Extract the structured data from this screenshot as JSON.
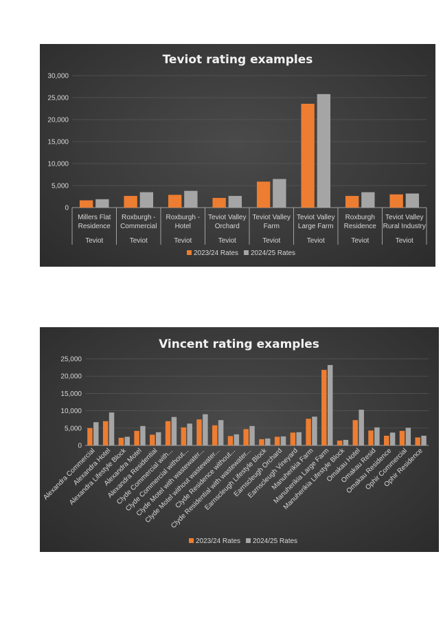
{
  "colors": {
    "series1": "#ed7d31",
    "series2": "#a5a5a5",
    "panel_bg": "#3a3a3a",
    "text": "#d9d9d9",
    "grid": "#595959"
  },
  "chart_data": [
    {
      "type": "bar",
      "title": "Teviot rating examples",
      "categories": [
        [
          "Millers Flat",
          "Residence"
        ],
        [
          "Roxburgh  -",
          "Commercial"
        ],
        [
          "Roxburgh  -",
          "Hotel"
        ],
        [
          "Teviot Valley",
          "Orchard"
        ],
        [
          "Teviot Valley",
          "Farm"
        ],
        [
          "Teviot Valley",
          "Large Farm"
        ],
        [
          "Roxburgh",
          "Residence"
        ],
        [
          "Teviot Valley",
          "Rural Industry"
        ]
      ],
      "group_labels": [
        "Teviot",
        "Teviot",
        "Teviot",
        "Teviot",
        "Teviot",
        "Teviot",
        "Teviot",
        "Teviot"
      ],
      "series": [
        {
          "name": "2023/24 Rates",
          "values": [
            1650,
            2650,
            2900,
            2200,
            5900,
            23600,
            2650,
            3000
          ]
        },
        {
          "name": "2024/25 Rates",
          "values": [
            1900,
            3500,
            3800,
            2650,
            6500,
            25800,
            3500,
            3200
          ]
        }
      ],
      "ylim": [
        0,
        30000
      ],
      "yticks": [
        "0",
        "5,000",
        "10,000",
        "15,000",
        "20,000",
        "25,000",
        "30,000"
      ],
      "ytick_values": [
        0,
        5000,
        10000,
        15000,
        20000,
        25000,
        30000
      ],
      "grid": true,
      "legend": "bottom"
    },
    {
      "type": "bar",
      "title": "Vincent rating examples",
      "categories": [
        "Alexandra Commercial",
        "Alexandra Hotel",
        "Alexandra Lifestyle Block",
        "Alexandra Motel",
        "Alexandra Residential",
        "Clyde Commercial with...",
        "Clyde Commercial without...",
        "Clyde Motel with wastewater...",
        "Clyde Motel without wastewater...",
        "Clyde Residence without...",
        "Clyde Residential with wastewater...",
        "Earnscleugh Lifestyle Block",
        "Earnscleugh Orchard",
        "Earnscleugh Vineyard",
        "Manuherikia Farm",
        "Manuherikia Large Farm",
        "Manuherikia Lifestyle Block",
        "Omakau Hotel",
        "Omakau Resid",
        "Omakau Residence",
        "Ophir Commercial",
        "Ophir Residence"
      ],
      "series": [
        {
          "name": "2023/24 Rates",
          "values": [
            5000,
            7000,
            2200,
            4200,
            3100,
            7000,
            5200,
            7500,
            5800,
            2700,
            4700,
            1800,
            2500,
            3700,
            7700,
            21800,
            1400,
            7300,
            4300,
            2800,
            4200,
            2300
          ]
        },
        {
          "name": "2024/25 Rates",
          "values": [
            6700,
            9500,
            2500,
            5600,
            3800,
            8200,
            6300,
            9000,
            7300,
            3200,
            5600,
            2000,
            2600,
            3800,
            8300,
            23200,
            1600,
            10300,
            5200,
            3700,
            5100,
            2800
          ]
        }
      ],
      "ylim": [
        0,
        25000
      ],
      "yticks": [
        "0",
        "5,000",
        "10,000",
        "15,000",
        "20,000",
        "25,000"
      ],
      "ytick_values": [
        0,
        5000,
        10000,
        15000,
        20000,
        25000
      ],
      "grid": true,
      "legend": "bottom"
    }
  ]
}
